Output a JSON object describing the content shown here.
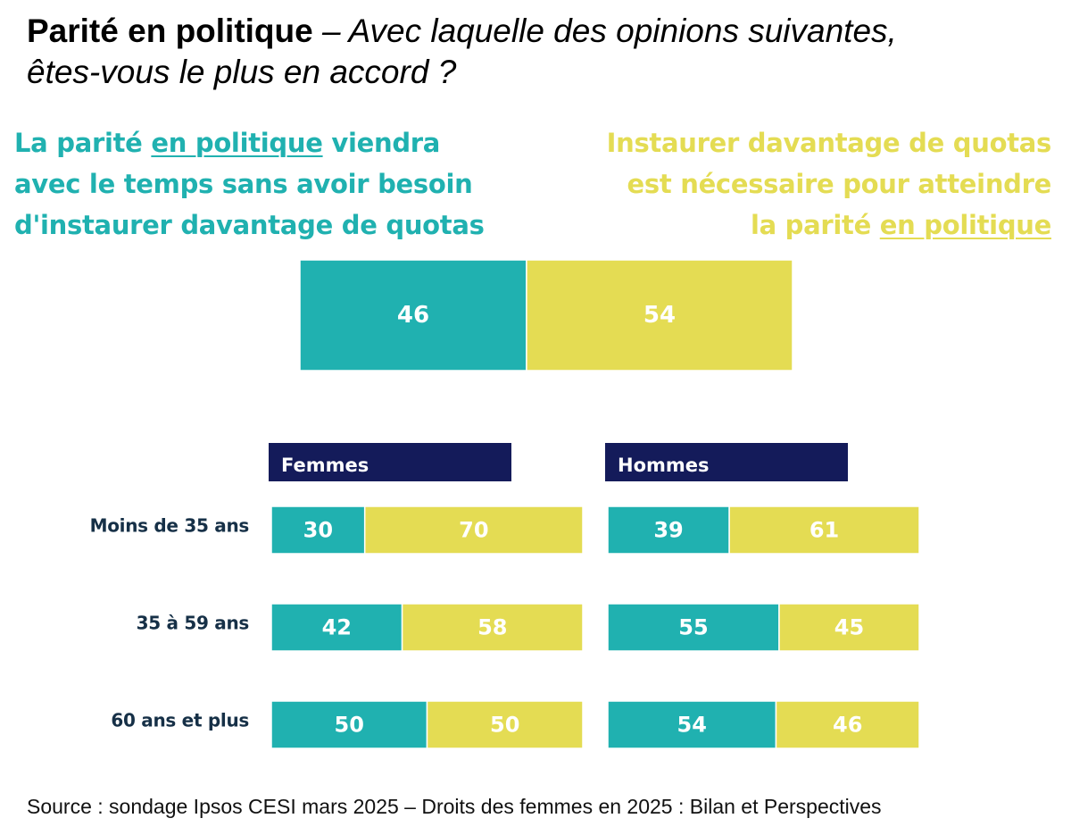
{
  "title": {
    "bold": "Parité en politique",
    "italic_line1": " – Avec laquelle des opinions suivantes,",
    "italic_line2": "êtes-vous le plus en accord ?"
  },
  "options": {
    "left": {
      "line1_pre": "La parité ",
      "line1_u": "en politique",
      "line1_post": " viendra",
      "line2": "avec le temps sans avoir besoin",
      "line3": "d'instaurer davantage de quotas"
    },
    "right": {
      "line1": "Instaurer davantage de quotas",
      "line2": "est nécessaire pour atteindre",
      "line3_pre": "la parité ",
      "line3_u": "en politique"
    }
  },
  "colors": {
    "teal": "#20b1b0",
    "yellow": "#e4dc53",
    "navy": "#141b5a",
    "row_label": "#163047"
  },
  "chart_data": [
    {
      "type": "bar",
      "stacked": true,
      "orientation": "horizontal",
      "series": [
        {
          "values": [
            46
          ]
        },
        {
          "values": [
            54
          ]
        }
      ]
    },
    {
      "type": "bar",
      "stacked": true,
      "orientation": "horizontal",
      "panel": "Femmes",
      "categories": [
        "Moins de 35 ans",
        "35 à 59 ans",
        "60 ans et plus"
      ],
      "series": [
        {
          "values": [
            30,
            42,
            50
          ]
        },
        {
          "values": [
            70,
            58,
            50
          ]
        }
      ]
    },
    {
      "type": "bar",
      "stacked": true,
      "orientation": "horizontal",
      "panel": "Hommes",
      "categories": [
        "Moins de 35 ans",
        "35 à 59 ans",
        "60 ans et plus"
      ],
      "series": [
        {
          "values": [
            39,
            55,
            54
          ]
        },
        {
          "values": [
            61,
            45,
            46
          ]
        }
      ]
    }
  ],
  "source": "Source : sondage Ipsos CESI mars 2025 – Droits des femmes en 2025 : Bilan et Perspectives"
}
